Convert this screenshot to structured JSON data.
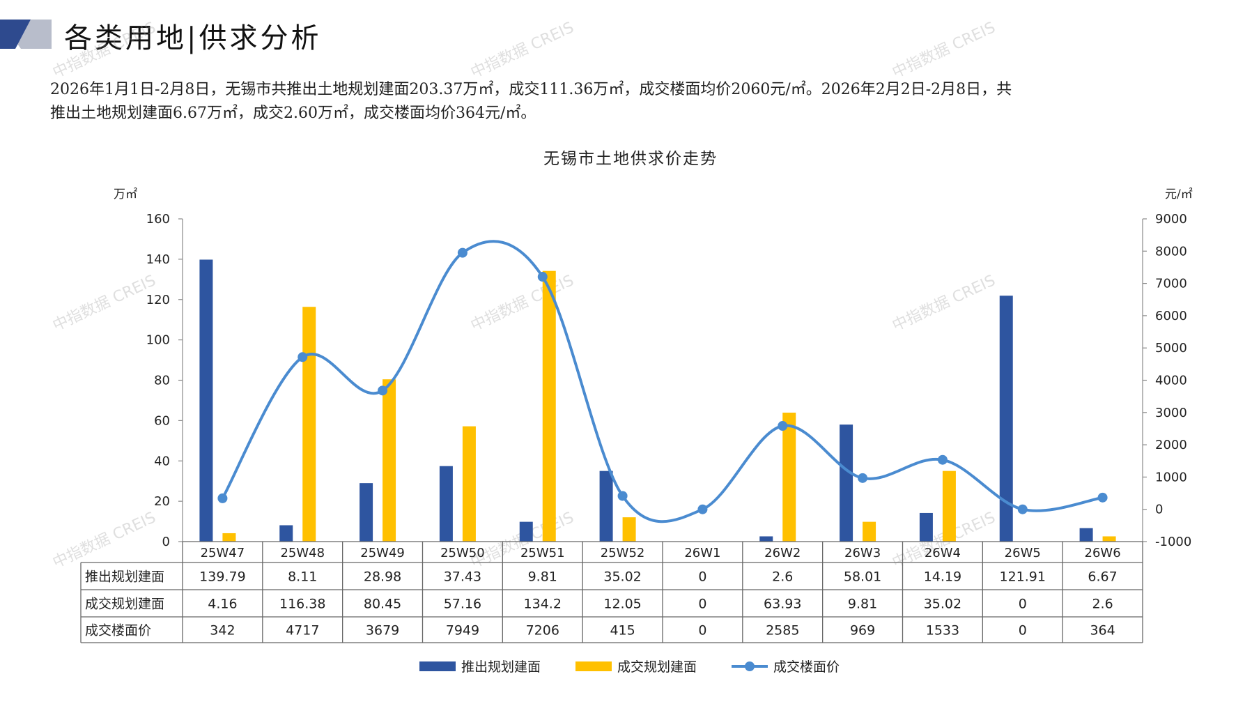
{
  "header": {
    "title": "各类用地|供求分析"
  },
  "summary": {
    "line1": "2026年1月1日-2月8日，无锡市共推出土地规划建面203.37万㎡，成交111.36万㎡，成交楼面均价2060元/㎡。2026年2月2日-2月8日，共",
    "line2": "推出土地规划建面6.67万㎡，成交2.60万㎡，成交楼面均价364元/㎡。"
  },
  "watermark_text": "中指数据 CREIS",
  "colors": {
    "supply": "#2E55A0",
    "transaction": "#FFC000",
    "price": "#4A8BD0",
    "logo_dark": "#2E4A8E",
    "logo_light": "#B8BDCB"
  },
  "chart_data": {
    "type": "bar",
    "title": "无锡市土地供求价走势",
    "y_left_unit": "万㎡",
    "y_right_unit": "元/㎡",
    "y_left_range": [
      0,
      160
    ],
    "y_left_ticks": [
      "0",
      "20",
      "40",
      "60",
      "80",
      "100",
      "120",
      "140",
      "160"
    ],
    "y_right_range": [
      -1000,
      9000
    ],
    "y_right_ticks": [
      "-1000",
      "0",
      "1000",
      "2000",
      "3000",
      "4000",
      "5000",
      "6000",
      "7000",
      "8000",
      "9000"
    ],
    "categories": [
      "25W47",
      "25W48",
      "25W49",
      "25W50",
      "25W51",
      "25W52",
      "26W1",
      "26W2",
      "26W3",
      "26W4",
      "26W5",
      "26W6"
    ],
    "series": [
      {
        "name": "推出规划建面",
        "type": "bar",
        "axis": "left",
        "values": [
          139.79,
          8.11,
          28.98,
          37.43,
          9.81,
          35.02,
          0,
          2.6,
          58.01,
          14.19,
          121.91,
          6.67
        ],
        "labels": [
          "139.79",
          "8.11",
          "28.98",
          "37.43",
          "9.81",
          "35.02",
          "0",
          "2.6",
          "58.01",
          "14.19",
          "121.91",
          "6.67"
        ]
      },
      {
        "name": "成交规划建面",
        "type": "bar",
        "axis": "left",
        "values": [
          4.16,
          116.38,
          80.45,
          57.16,
          134.2,
          12.05,
          0,
          63.93,
          9.81,
          35.02,
          0,
          2.6
        ],
        "labels": [
          "4.16",
          "116.38",
          "80.45",
          "57.16",
          "134.2",
          "12.05",
          "0",
          "63.93",
          "9.81",
          "35.02",
          "0",
          "2.6"
        ]
      },
      {
        "name": "成交楼面价",
        "type": "line",
        "axis": "right",
        "values": [
          342,
          4717,
          3679,
          7949,
          7206,
          415,
          0,
          2585,
          969,
          1533,
          0,
          364
        ],
        "labels": [
          "342",
          "4717",
          "3679",
          "7949",
          "7206",
          "415",
          "0",
          "2585",
          "969",
          "1533",
          "0",
          "364"
        ]
      }
    ],
    "legend_position": "bottom-center",
    "grid": false
  }
}
